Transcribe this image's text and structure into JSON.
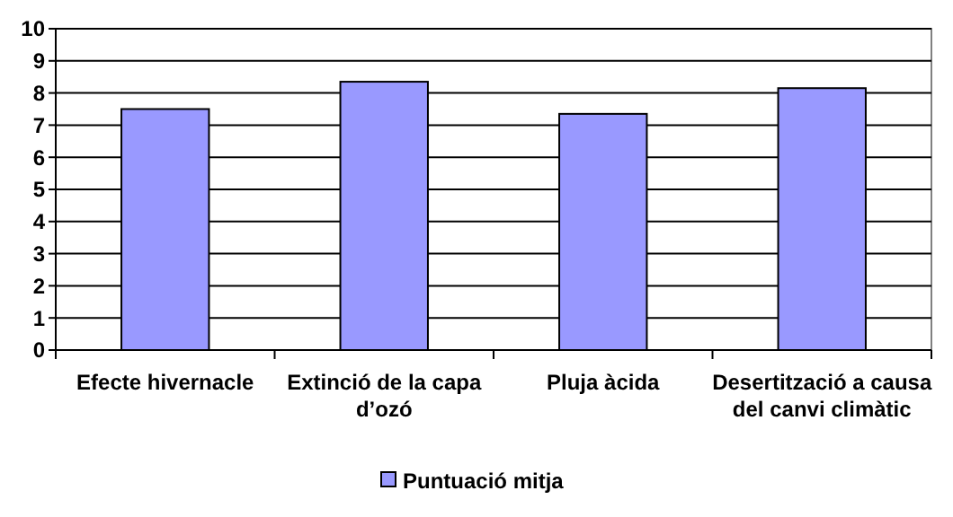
{
  "chart_data": {
    "type": "bar",
    "categories": [
      "Efecte hivernacle",
      "Extinció de la capa d’ozó",
      "Pluja àcida",
      "Desertització a causa del canvi climàtic"
    ],
    "series": [
      {
        "name": "Puntuació mitja",
        "color": "#9999ff",
        "values": [
          7.5,
          8.35,
          7.35,
          8.15
        ]
      }
    ],
    "ylim": [
      0,
      10
    ],
    "yticks": [
      0,
      1,
      2,
      3,
      4,
      5,
      6,
      7,
      8,
      9,
      10
    ],
    "grid": "y",
    "legend": "bottom"
  }
}
